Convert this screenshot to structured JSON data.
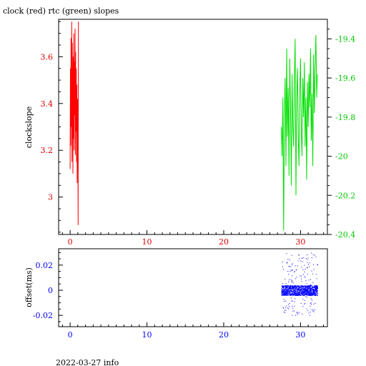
{
  "title": "clock (red) rtc (green) slopes",
  "footer": "2022-03-27 info",
  "colors": {
    "clock": "#ff0000",
    "rtc": "#00e000",
    "offset": "#0000ff",
    "axis": "#000000",
    "red_axis_text": "#dd0000",
    "green_axis_text": "#00c800",
    "blue_axis_text": "#0000ff"
  },
  "chart_data": [
    {
      "type": "line",
      "title": "clock (red) rtc (green) slopes",
      "ylabel": "clockslope",
      "xlabel": "",
      "xlim": [
        -1.5,
        33.5
      ],
      "x_ticks": [
        0,
        10,
        20,
        30
      ],
      "y_left": {
        "label": "clockslope",
        "range": [
          2.84,
          3.76
        ],
        "ticks": [
          3,
          3.2,
          3.4,
          3.6
        ]
      },
      "y_right": {
        "range": [
          -20.4,
          -19.3
        ],
        "ticks": [
          -19.4,
          -19.6,
          -19.8,
          -20,
          -20.2,
          -20.4
        ]
      },
      "grid": false,
      "series": [
        {
          "name": "clock (red)",
          "axis": "left",
          "color": "#ff0000",
          "x": [
            0.0,
            0.04,
            0.08,
            0.12,
            0.16,
            0.2,
            0.24,
            0.28,
            0.32,
            0.36,
            0.4,
            0.44,
            0.48,
            0.52,
            0.56,
            0.6,
            0.64,
            0.68,
            0.72,
            0.76,
            0.8,
            0.84,
            0.88,
            0.92,
            0.96,
            1.0,
            1.04,
            1.08
          ],
          "values": [
            3.12,
            3.55,
            3.22,
            3.68,
            3.3,
            3.75,
            3.15,
            3.66,
            3.4,
            3.1,
            3.6,
            3.25,
            3.7,
            3.2,
            3.58,
            3.35,
            3.72,
            3.18,
            3.62,
            3.28,
            3.55,
            3.15,
            3.48,
            3.06,
            3.42,
            3.35,
            2.88,
            3.75
          ]
        },
        {
          "name": "rtc (green)",
          "axis": "right",
          "color": "#00e000",
          "x": [
            27.5,
            27.6,
            27.7,
            27.8,
            27.9,
            28.0,
            28.1,
            28.2,
            28.3,
            28.4,
            28.5,
            28.6,
            28.7,
            28.8,
            28.9,
            29.0,
            29.1,
            29.2,
            29.3,
            29.4,
            29.5,
            29.6,
            29.7,
            29.8,
            29.9,
            30.0,
            30.1,
            30.2,
            30.3,
            30.4,
            30.5,
            30.6,
            30.7,
            30.8,
            30.9,
            31.0,
            31.1,
            31.2,
            31.3,
            31.4,
            31.5,
            31.6,
            31.7,
            31.8,
            31.9,
            32.0,
            32.1,
            32.2
          ],
          "values": [
            -19.85,
            -20.0,
            -19.7,
            -20.38,
            -19.8,
            -19.6,
            -20.05,
            -19.45,
            -19.9,
            -19.65,
            -20.1,
            -19.5,
            -19.75,
            -20.15,
            -19.58,
            -19.85,
            -19.95,
            -19.62,
            -19.4,
            -20.2,
            -19.7,
            -19.55,
            -19.9,
            -20.05,
            -19.68,
            -19.5,
            -19.88,
            -20.0,
            -19.6,
            -19.8,
            -19.52,
            -19.95,
            -19.7,
            -20.12,
            -19.62,
            -19.85,
            -19.58,
            -19.75,
            -19.45,
            -19.92,
            -19.68,
            -20.05,
            -19.48,
            -19.78,
            -19.55,
            -19.38,
            -19.7,
            -19.58
          ]
        }
      ]
    },
    {
      "type": "scatter",
      "xlabel": "",
      "ylabel": "offset(ms)",
      "xlim": [
        -1.5,
        33.5
      ],
      "ylim": [
        -0.029,
        0.033
      ],
      "x_ticks": [
        0,
        10,
        20,
        30
      ],
      "y_ticks": [
        -0.02,
        0,
        0.02
      ],
      "y_tick_labels": [
        "-0.02",
        "0",
        "0.02"
      ],
      "grid": false,
      "series": [
        {
          "name": "offset",
          "color": "#0000ff",
          "x_range": [
            27.5,
            32.2
          ],
          "core_band": [
            -0.004,
            0.004
          ],
          "outlier_extent": [
            -0.02,
            0.03
          ]
        }
      ]
    }
  ]
}
